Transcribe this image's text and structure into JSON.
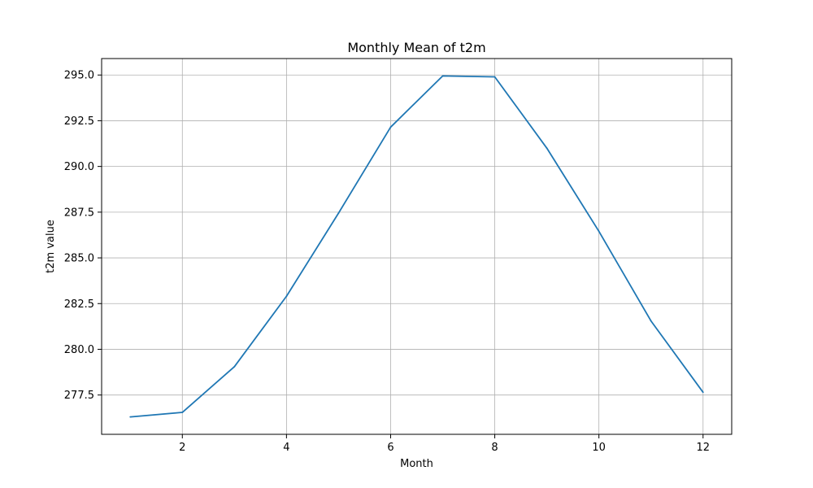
{
  "chart_data": {
    "type": "line",
    "title": "Monthly Mean of t2m",
    "xlabel": "Month",
    "ylabel": "t2m value",
    "xlim": [
      0.45,
      12.55
    ],
    "ylim": [
      275.35,
      295.9
    ],
    "x_ticks": [
      2,
      4,
      6,
      8,
      10,
      12
    ],
    "x_tick_labels": [
      "2",
      "4",
      "6",
      "8",
      "10",
      "12"
    ],
    "y_ticks": [
      277.5,
      280.0,
      282.5,
      285.0,
      287.5,
      290.0,
      292.5,
      295.0
    ],
    "y_tick_labels": [
      "277.5",
      "280.0",
      "282.5",
      "285.0",
      "287.5",
      "290.0",
      "292.5",
      "295.0"
    ],
    "grid": true,
    "legend": "none",
    "series": [
      {
        "color": "#1f77b4",
        "x": [
          1,
          2,
          3,
          4,
          5,
          6,
          7,
          8,
          9,
          10,
          11,
          12
        ],
        "y": [
          276.3,
          276.55,
          279.05,
          282.9,
          287.45,
          292.15,
          294.95,
          294.9,
          291.0,
          286.45,
          281.55,
          277.65
        ]
      }
    ]
  }
}
